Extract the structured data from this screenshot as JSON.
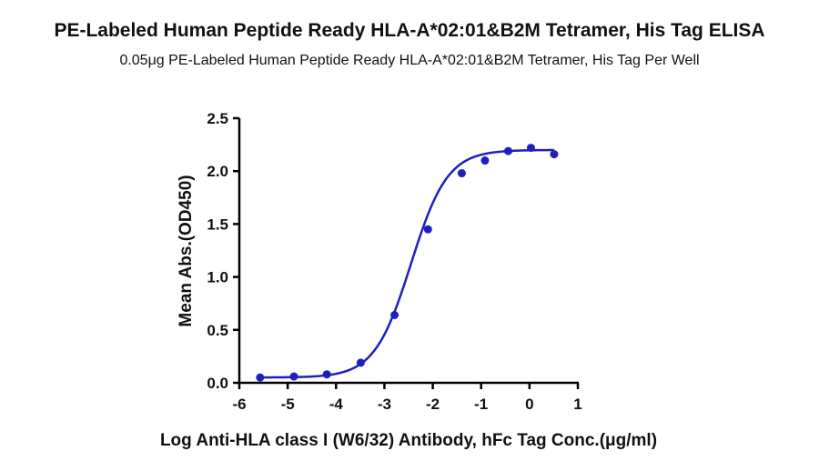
{
  "chart_data": {
    "type": "scatter",
    "title": "PE-Labeled Human Peptide Ready HLA-A*02:01&B2M Tetramer, His Tag ELISA",
    "subtitle": "0.05μg PE-Labeled Human Peptide Ready HLA-A*02:01&B2M Tetramer, His Tag Per Well",
    "xlabel": "Log Anti-HLA class I (W6/32) Antibody, hFc Tag Conc.(μg/ml)",
    "ylabel": "Mean Abs.(OD450)",
    "xlim": [
      -6,
      1
    ],
    "ylim": [
      0,
      2.5
    ],
    "xticks": [
      -6,
      -5,
      -4,
      -3,
      -2,
      -1,
      0,
      1
    ],
    "xtick_labels": [
      "-6",
      "-5",
      "-4",
      "-3",
      "-2",
      "-1",
      "0",
      "1"
    ],
    "yticks": [
      0,
      0.5,
      1.0,
      1.5,
      2.0,
      2.5
    ],
    "ytick_labels": [
      "0.0",
      "0.5",
      "1.0",
      "1.5",
      "2.0",
      "2.5"
    ],
    "grid": false,
    "series": [
      {
        "color": "#1f1fbf",
        "x": [
          -5.57,
          -4.87,
          -4.19,
          -3.49,
          -2.79,
          -2.1,
          -1.4,
          -0.92,
          -0.44,
          0.03,
          0.51
        ],
        "y": [
          0.05,
          0.06,
          0.08,
          0.19,
          0.64,
          1.45,
          1.98,
          2.1,
          2.19,
          2.22,
          2.16
        ],
        "fit": {
          "model": "4PL",
          "bottom": 0.05,
          "top": 2.2,
          "log_ec50": -2.45,
          "hill": 1.15
        }
      }
    ]
  }
}
